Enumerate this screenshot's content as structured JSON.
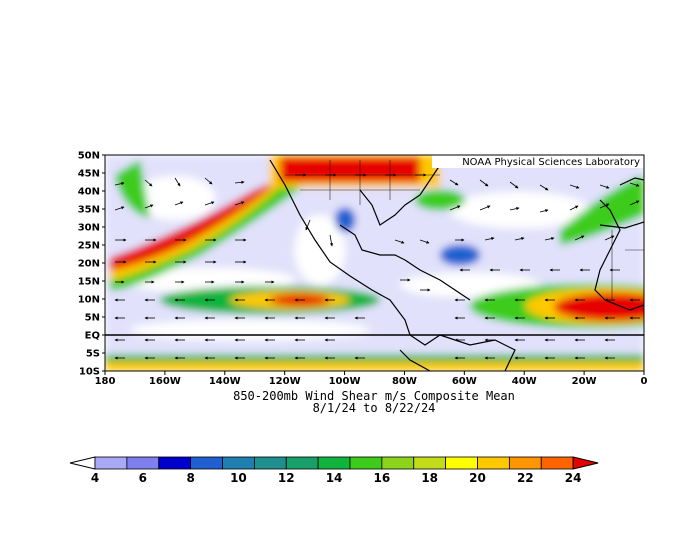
{
  "map": {
    "credit": "NOAA Physical Sciences Laboratory",
    "title_line1": "850-200mb Wind Shear m/s Composite Mean",
    "title_line2": "8/1/24  to 8/22/24",
    "lat_labels": [
      "50N",
      "45N",
      "40N",
      "35N",
      "30N",
      "25N",
      "20N",
      "15N",
      "10N",
      "5N",
      "EQ",
      "5S",
      "10S"
    ],
    "lon_labels": [
      "180",
      "160W",
      "140W",
      "120W",
      "100W",
      "80W",
      "60W",
      "40W",
      "20W",
      "0"
    ]
  },
  "colorbar": {
    "labels": [
      "4",
      "6",
      "8",
      "10",
      "12",
      "14",
      "16",
      "18",
      "20",
      "22",
      "24"
    ],
    "colors": [
      "#ffffff",
      "#a9a9f5",
      "#7f7fef",
      "#0000cd",
      "#1f5fd0",
      "#1f7fb0",
      "#1f8f8f",
      "#17a06a",
      "#10b43c",
      "#3dcc1a",
      "#8bd41a",
      "#c3dc1a",
      "#ffff00",
      "#ffc800",
      "#ff9600",
      "#ff6400",
      "#e60000"
    ]
  }
}
